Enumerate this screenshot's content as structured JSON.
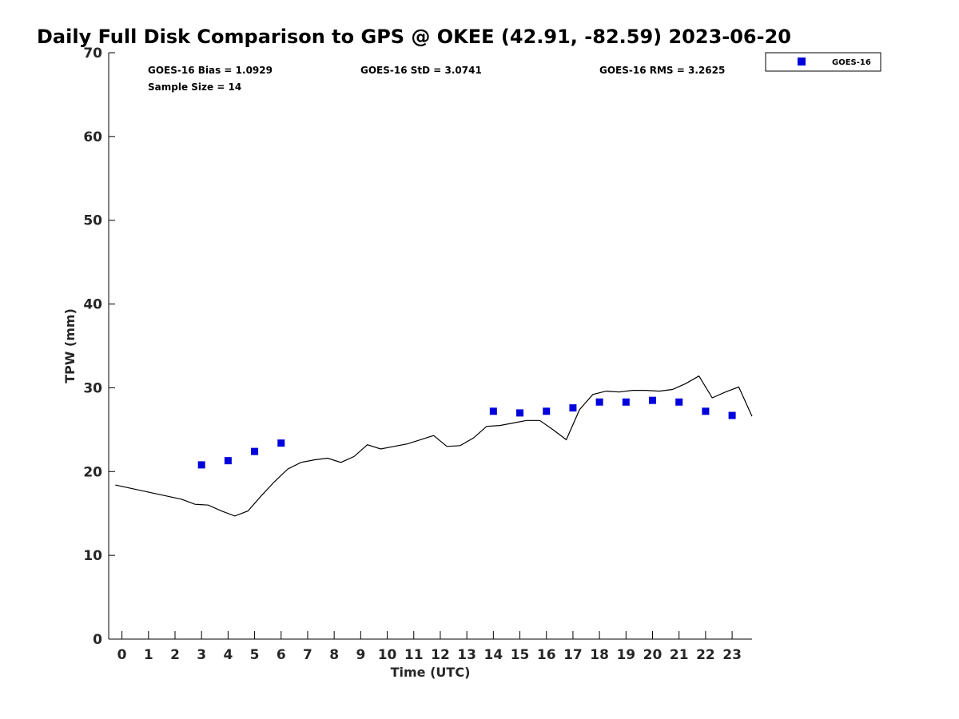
{
  "chart_data": {
    "type": "scatter",
    "title": "Daily Full Disk Comparison to GPS @ OKEE (42.91, -82.59) 2023-06-20",
    "xlabel": "Time (UTC)",
    "ylabel": "TPW (mm)",
    "xlim": [
      -0.5,
      23.75
    ],
    "ylim": [
      0,
      70
    ],
    "x_ticks": [
      "0",
      "1",
      "2",
      "3",
      "4",
      "5",
      "6",
      "7",
      "8",
      "9",
      "10",
      "11",
      "12",
      "13",
      "14",
      "15",
      "16",
      "17",
      "18",
      "19",
      "20",
      "21",
      "22",
      "23"
    ],
    "y_ticks": [
      "0",
      "10",
      "20",
      "30",
      "40",
      "50",
      "60",
      "70"
    ],
    "grid": false,
    "legend_position": "top-right",
    "stats": {
      "bias": "GOES-16 Bias = 1.0929",
      "std": "GOES-16 StD = 3.0741",
      "rms": "GOES-16 RMS = 3.2625",
      "sample_size": "Sample Size = 14"
    },
    "series": [
      {
        "name": "GOES-16",
        "kind": "scatter",
        "color": "#0000dd",
        "x": [
          3,
          4,
          5,
          6,
          14,
          15,
          16,
          17,
          18,
          19,
          20,
          21,
          22,
          23
        ],
        "y": [
          20.8,
          21.3,
          22.4,
          23.4,
          27.2,
          27.0,
          27.2,
          27.6,
          28.3,
          28.3,
          28.5,
          28.3,
          27.2,
          26.7
        ]
      },
      {
        "kind": "line",
        "color": "#000000",
        "x": [
          -0.25,
          2.25,
          2.75,
          3.25,
          3.75,
          4.25,
          4.75,
          5.25,
          5.75,
          6.25,
          6.75,
          7.25,
          7.75,
          8.25,
          8.75,
          9.25,
          9.75,
          10.25,
          10.75,
          11.25,
          11.75,
          12.25,
          12.75,
          13.25,
          13.75,
          14.25,
          14.75,
          15.25,
          15.75,
          16.25,
          16.75,
          17.25,
          17.75,
          18.25,
          18.75,
          19.25,
          19.75,
          20.25,
          20.75,
          21.25,
          21.75,
          22.25,
          22.75,
          23.25,
          23.75
        ],
        "y": [
          18.4,
          16.7,
          16.1,
          16.0,
          15.3,
          14.7,
          15.3,
          17.1,
          18.8,
          20.3,
          21.1,
          21.4,
          21.6,
          21.1,
          21.8,
          23.2,
          22.7,
          23.0,
          23.3,
          23.8,
          24.3,
          23.0,
          23.1,
          24.0,
          25.4,
          25.5,
          25.8,
          26.1,
          26.1,
          25.0,
          23.8,
          27.4,
          29.2,
          29.6,
          29.5,
          29.7,
          29.7,
          29.6,
          29.8,
          30.5,
          31.4,
          28.8,
          29.5,
          30.1,
          26.6
        ]
      }
    ]
  }
}
